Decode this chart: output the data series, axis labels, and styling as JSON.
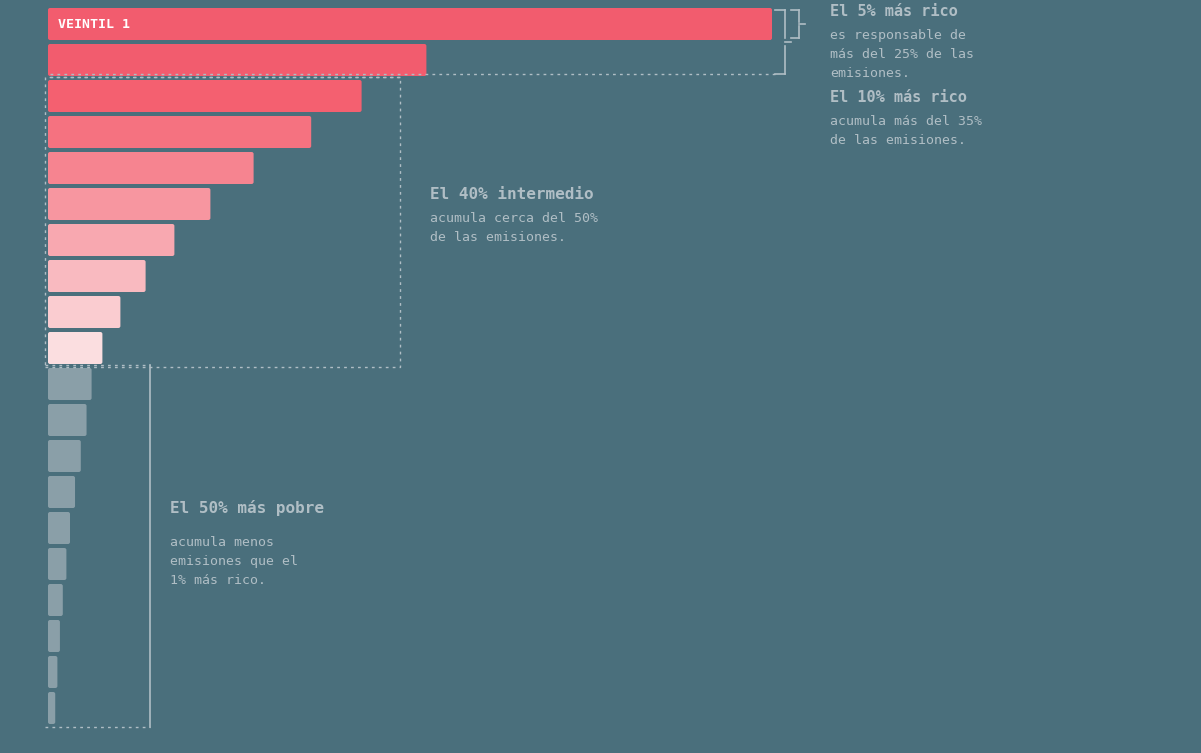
{
  "background_color": "#4a6f7c",
  "bar_values": [
    100,
    52,
    43,
    36,
    28,
    22,
    17,
    13,
    9.5,
    7,
    5.5,
    4.8,
    4.0,
    3.2,
    2.5,
    2.0,
    1.5,
    1.1,
    0.75,
    0.45
  ],
  "bar_color_list": [
    "#f25c6e",
    "#f25c6e",
    "#f46070",
    "#f57280",
    "#f68490",
    "#f796a0",
    "#f8a8b0",
    "#f9bac0",
    "#faccd0",
    "#fbdee0",
    "#8a9fa8",
    "#8a9fa8",
    "#8a9fa8",
    "#8a9fa8",
    "#8a9fa8",
    "#8a9fa8",
    "#8a9fa8",
    "#8a9fa8",
    "#8a9fa8",
    "#8a9fa8"
  ],
  "veintil_label": "VEINTIL 1",
  "text_color": "#b0bec5",
  "ann1_bold": "El 5% más rico",
  "ann1_normal": "es responsable de\nmás del 25% de las\nemisiones.",
  "ann2_bold": "El 10% más rico",
  "ann2_normal": "acumula más del 35%\nde las emisiones.",
  "ann3_bold": "El 40% intermedio",
  "ann3_normal": "acumula cerca del 50%\nde las emisiones.",
  "ann4_bold": "El 50% más pobre",
  "ann4_normal": "acumula menos\nemisiones que el\n1% más rico."
}
